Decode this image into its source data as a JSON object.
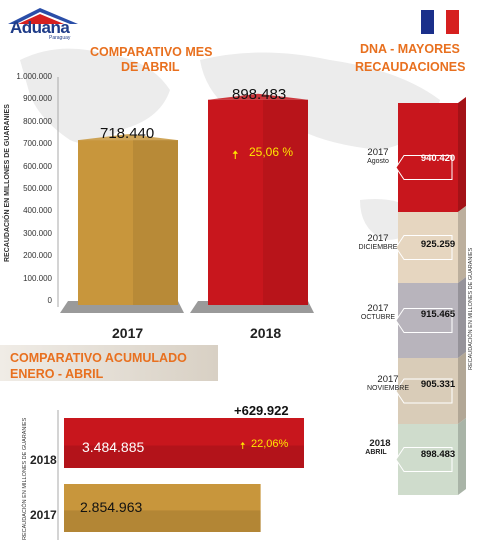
{
  "header": {
    "logo_text": "Aduana",
    "logo_sub": "Paraguay",
    "flag_colors": [
      "#1a2f8a",
      "#ffffff",
      "#d6201f"
    ]
  },
  "colors": {
    "accent_orange": "#e8701f",
    "bar_2017": "#c8963c",
    "bar_2018": "#c8161d"
  },
  "titles": {
    "monthly_line1": "COMPARATIVO MES",
    "monthly_line2": "DE ABRIL",
    "ranking_line1": "DNA - MAYORES",
    "ranking_line2": "RECAUDACIONES",
    "cumulative_line1": "COMPARATIVO ACUMULADO",
    "cumulative_line2": "ENERO - ABRIL"
  },
  "chart_data": [
    {
      "type": "bar",
      "title": "COMPARATIVO MES DE ABRIL",
      "ylabel": "RECAUDACIÓN EN MILLONES DE GUARANIES",
      "ylim": [
        0,
        1000000
      ],
      "yticks": [
        "0",
        "100.000",
        "200.000",
        "300.000",
        "400.000",
        "500.000",
        "600.000",
        "700.000",
        "800.000",
        "900.000",
        "1.000.000"
      ],
      "categories": [
        "2017",
        "2018"
      ],
      "values": [
        718440,
        898483
      ],
      "value_labels": [
        "718.440",
        "898.483"
      ],
      "change_label": "25,06 %",
      "grid": false
    },
    {
      "type": "bar",
      "orientation": "horizontal",
      "title": "COMPARATIVO ACUMULADO ENERO - ABRIL",
      "ylabel": "RECAUDACIÓN EN MILLONES DE GUARANIES",
      "categories": [
        "2018",
        "2017"
      ],
      "values": [
        3484885,
        2854963
      ],
      "value_labels": [
        "3.484.885",
        "2.854.963"
      ],
      "difference_label": "+629.922",
      "change_label": "22,06%"
    },
    {
      "type": "bar",
      "title": "DNA - MAYORES RECAUDACIONES",
      "ylabel": "RECAUDACIÓN EN MILLONES DE GUARANIES",
      "items": [
        {
          "year": "2017",
          "month": "Agosto",
          "value": 940420,
          "label": "940.420",
          "color": "#c8161d"
        },
        {
          "year": "2017",
          "month": "DICIEMBRE",
          "value": 925259,
          "label": "925.259",
          "color": "#e6d6c0"
        },
        {
          "year": "2017",
          "month": "OCTUBRE",
          "value": 915465,
          "label": "915.465",
          "color": "#b8b4bc"
        },
        {
          "year": "2017",
          "month": "NOVIEMBRE",
          "value": 905331,
          "label": "905.331",
          "color": "#d9ccb8"
        },
        {
          "year": "2018",
          "month": "ABRIL",
          "value": 898483,
          "label": "898.483",
          "color": "#cfdccc"
        }
      ]
    }
  ]
}
